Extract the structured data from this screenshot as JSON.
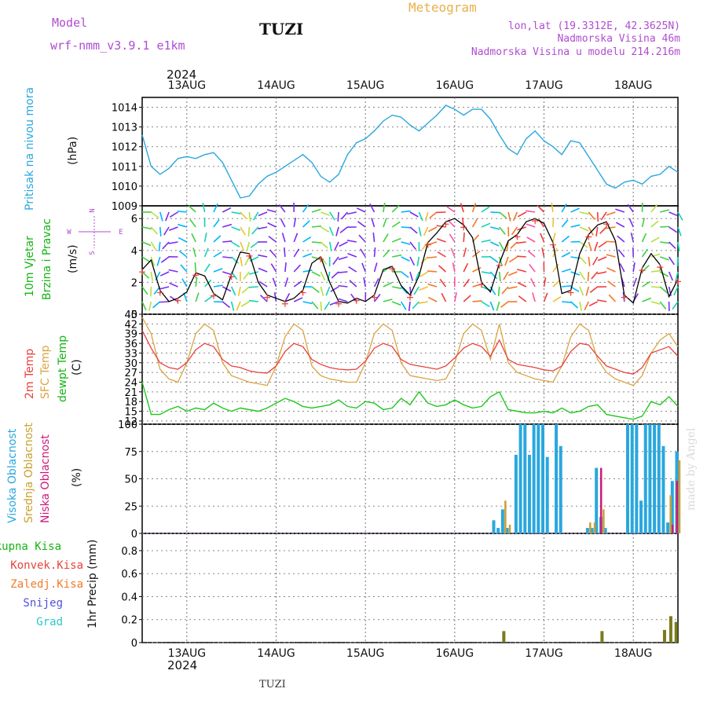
{
  "header": {
    "model_label": "Model",
    "model_name": "wrf-nmm_v3.9.1  e1km",
    "station": "TUZI",
    "title": "Meteogram",
    "coords": "lon,lat (19.3312E, 42.3625N)",
    "elevation": "Nadmorska Visina 46m",
    "model_elevation": "Nadmorska Visina u modelu 214.216m",
    "year": "2024",
    "footer_station": "TUZI",
    "credit": "made by Angel"
  },
  "colors": {
    "pressure": "#2aa7de",
    "wind_label": "#14b414",
    "temp2m": "#e8423c",
    "sfc_temp": "#d9a441",
    "dewpoint": "#1ec81e",
    "high_cloud": "#2aa7de",
    "mid_cloud": "#c9a030",
    "low_cloud": "#d0187c",
    "precip_bar": "#7a7a1e",
    "axis_label_purple": "#b04cd0"
  },
  "days": [
    "13AUG",
    "14AUG",
    "15AUG",
    "16AUG",
    "17AUG",
    "18AUG"
  ],
  "panels": {
    "pressure": {
      "ylabel": "Pritisak na nivou mora",
      "unit": "(hPa)",
      "ticks": [
        "1009",
        "1010",
        "1011",
        "1012",
        "1013",
        "1014"
      ]
    },
    "wind": {
      "ylabel1": "10m Vjetar",
      "ylabel2": "Brzina i Pravac",
      "unit": "(m/s)",
      "ticks": [
        "0",
        "2",
        "4",
        "6"
      ],
      "compass_n": "N",
      "compass_w": "W",
      "compass_e": "E",
      "compass_s": "S"
    },
    "temperature": {
      "label_2m": "2m Temp",
      "label_sfc": "SFC Temp",
      "label_dew": "dewpt Temp",
      "unit": "(C)",
      "ticks": [
        "12",
        "15",
        "18",
        "21",
        "24",
        "27",
        "30",
        "33",
        "36",
        "39",
        "42",
        "45"
      ]
    },
    "cloud": {
      "label_high": "Visoka Oblacnost",
      "label_mid": "Srednja Oblacnost",
      "label_low": "Niska Oblacnost",
      "unit": "(%)",
      "ticks": [
        "0",
        "25",
        "50",
        "75",
        "100"
      ]
    },
    "precip": {
      "legend": [
        "Ukupna Kisa",
        "Konvek.Kisa",
        "Zaledj.Kisa",
        "Snijeg",
        "Grad"
      ],
      "legend_colors": [
        "#14b414",
        "#e8423c",
        "#f07a28",
        "#5050e0",
        "#2cc8c8"
      ],
      "ylabel": "1hr Precip (mm)",
      "ticks": [
        "0",
        "0.2",
        "0.4",
        "0.6",
        "0.8"
      ]
    }
  },
  "chart_data": [
    {
      "type": "line",
      "title": "",
      "ylabel": "Pritisak na nivou mora (hPa)",
      "ylim": [
        1009,
        1014.5
      ],
      "x": [
        12.5,
        12.6,
        12.7,
        12.8,
        12.9,
        13.0,
        13.1,
        13.2,
        13.3,
        13.4,
        13.5,
        13.6,
        13.7,
        13.8,
        13.9,
        14.0,
        14.1,
        14.2,
        14.3,
        14.4,
        14.5,
        14.6,
        14.7,
        14.8,
        14.9,
        15.0,
        15.1,
        15.2,
        15.3,
        15.4,
        15.5,
        15.6,
        15.7,
        15.8,
        15.9,
        16.0,
        16.1,
        16.2,
        16.3,
        16.4,
        16.5,
        16.6,
        16.7,
        16.8,
        16.9,
        17.0,
        17.1,
        17.2,
        17.3,
        17.4,
        17.5,
        17.6,
        17.7,
        17.8,
        17.9,
        18.0,
        18.1,
        18.2,
        18.3,
        18.4,
        18.5
      ],
      "series": [
        {
          "values": [
            1012.6,
            1011.0,
            1010.6,
            1010.9,
            1011.4,
            1011.5,
            1011.4,
            1011.6,
            1011.7,
            1011.2,
            1010.3,
            1009.4,
            1009.5,
            1010.1,
            1010.5,
            1010.7,
            1011.0,
            1011.3,
            1011.6,
            1011.2,
            1010.5,
            1010.2,
            1010.6,
            1011.6,
            1012.2,
            1012.4,
            1012.8,
            1013.3,
            1013.6,
            1013.5,
            1013.1,
            1012.8,
            1013.2,
            1013.6,
            1014.1,
            1013.9,
            1013.6,
            1013.9,
            1013.9,
            1013.4,
            1012.6,
            1011.9,
            1011.6,
            1012.4,
            1012.8,
            1012.3,
            1012.0,
            1011.6,
            1012.3,
            1012.2,
            1011.5,
            1010.8,
            1010.1,
            1009.9,
            1010.2,
            1010.3,
            1010.1,
            1010.5,
            1010.6,
            1011.0,
            1010.7
          ]
        }
      ]
    },
    {
      "type": "line",
      "title": "",
      "ylabel": "10m Vjetar Brzina i Pravac (m/s)",
      "ylim": [
        0,
        6.8
      ],
      "x": [
        12.5,
        12.6,
        12.7,
        12.8,
        12.9,
        13.0,
        13.1,
        13.2,
        13.3,
        13.4,
        13.5,
        13.6,
        13.7,
        13.8,
        13.9,
        14.0,
        14.1,
        14.2,
        14.3,
        14.4,
        14.5,
        14.6,
        14.7,
        14.8,
        14.9,
        15.0,
        15.1,
        15.2,
        15.3,
        15.4,
        15.5,
        15.6,
        15.7,
        15.8,
        15.9,
        16.0,
        16.1,
        16.2,
        16.3,
        16.4,
        16.5,
        16.6,
        16.7,
        16.8,
        16.9,
        17.0,
        17.1,
        17.2,
        17.3,
        17.4,
        17.5,
        17.6,
        17.7,
        17.8,
        17.9,
        18.0,
        18.1,
        18.2,
        18.3,
        18.4,
        18.5
      ],
      "series": [
        {
          "values": [
            2.8,
            3.4,
            1.5,
            0.8,
            1.0,
            1.4,
            2.6,
            2.4,
            1.3,
            0.9,
            2.5,
            3.9,
            3.8,
            2.0,
            1.2,
            1.0,
            0.8,
            1.0,
            1.5,
            3.2,
            3.6,
            2.0,
            0.8,
            0.7,
            1.0,
            0.8,
            1.2,
            2.8,
            3.0,
            1.8,
            1.2,
            2.4,
            4.5,
            5.1,
            5.8,
            6.0,
            5.6,
            4.8,
            2.0,
            1.4,
            3.2,
            4.6,
            5.0,
            5.8,
            6.0,
            5.7,
            4.5,
            1.3,
            1.5,
            3.8,
            5.0,
            5.6,
            5.8,
            4.6,
            1.2,
            0.7,
            2.9,
            3.8,
            3.1,
            1.1,
            2.2
          ]
        }
      ]
    },
    {
      "type": "line",
      "title": "",
      "ylabel": "(C)",
      "ylim": [
        11,
        45
      ],
      "x": [
        12.5,
        12.6,
        12.7,
        12.8,
        12.9,
        13.0,
        13.1,
        13.2,
        13.3,
        13.4,
        13.5,
        13.6,
        13.7,
        13.8,
        13.9,
        14.0,
        14.1,
        14.2,
        14.3,
        14.4,
        14.5,
        14.6,
        14.7,
        14.8,
        14.9,
        15.0,
        15.1,
        15.2,
        15.3,
        15.4,
        15.5,
        15.6,
        15.7,
        15.8,
        15.9,
        16.0,
        16.1,
        16.2,
        16.3,
        16.4,
        16.5,
        16.6,
        16.7,
        16.8,
        16.9,
        17.0,
        17.1,
        17.2,
        17.3,
        17.4,
        17.5,
        17.6,
        17.7,
        17.8,
        17.9,
        18.0,
        18.1,
        18.2,
        18.3,
        18.4,
        18.5
      ],
      "series": [
        {
          "name": "2m Temp",
          "values": [
            40.0,
            34.5,
            30.0,
            28.5,
            28.0,
            30.0,
            34.0,
            36.0,
            35.0,
            31.0,
            29.0,
            28.5,
            27.5,
            27.0,
            26.8,
            29.0,
            33.5,
            36.0,
            35.0,
            31.0,
            29.5,
            28.5,
            28.0,
            27.8,
            28.0,
            30.5,
            34.5,
            36.0,
            35.0,
            31.0,
            29.5,
            29.0,
            28.5,
            28.0,
            29.0,
            31.5,
            34.5,
            36.0,
            35.0,
            32.0,
            37.0,
            31.0,
            29.5,
            29.0,
            28.5,
            27.8,
            27.5,
            29.0,
            33.5,
            36.0,
            35.5,
            32.0,
            29.0,
            28.0,
            27.0,
            26.5,
            28.5,
            33.0,
            34.0,
            35.0,
            32.0
          ]
        },
        {
          "name": "SFC Temp",
          "values": [
            44.0,
            39.0,
            28.0,
            25.0,
            24.0,
            30.0,
            39.0,
            42.0,
            40.0,
            30.0,
            26.0,
            25.0,
            24.0,
            23.5,
            23.0,
            29.0,
            38.0,
            42.0,
            40.0,
            29.0,
            26.0,
            25.0,
            24.5,
            24.0,
            24.0,
            30.0,
            39.0,
            42.0,
            40.0,
            30.0,
            26.0,
            25.5,
            25.0,
            24.5,
            25.0,
            30.0,
            39.0,
            42.0,
            40.0,
            31.0,
            42.0,
            30.0,
            27.0,
            26.0,
            25.0,
            24.5,
            24.0,
            29.0,
            38.0,
            42.0,
            40.0,
            31.0,
            27.0,
            25.0,
            24.0,
            23.0,
            26.0,
            33.0,
            37.0,
            39.0,
            35.0
          ]
        },
        {
          "name": "dewpt Temp",
          "values": [
            24.0,
            14.0,
            14.0,
            15.5,
            16.5,
            15.0,
            16.0,
            15.5,
            17.5,
            16.0,
            15.0,
            16.0,
            15.5,
            15.0,
            16.0,
            17.5,
            19.0,
            18.0,
            16.5,
            16.0,
            16.5,
            17.0,
            18.5,
            16.5,
            16.0,
            18.0,
            17.5,
            15.5,
            16.0,
            19.0,
            17.0,
            21.0,
            17.5,
            16.5,
            17.0,
            18.5,
            17.0,
            16.0,
            16.5,
            19.5,
            21.0,
            15.5,
            15.0,
            14.5,
            14.5,
            15.0,
            14.5,
            16.0,
            14.5,
            15.0,
            16.5,
            17.0,
            14.0,
            13.5,
            13.0,
            12.5,
            13.5,
            18.0,
            17.0,
            19.5,
            16.5
          ]
        }
      ]
    },
    {
      "type": "bar",
      "title": "",
      "ylabel": "(%)",
      "ylim": [
        0,
        100
      ],
      "x": [
        16.45,
        16.5,
        16.55,
        16.6,
        16.7,
        16.75,
        16.8,
        16.85,
        16.9,
        16.95,
        17.0,
        17.05,
        17.15,
        17.2,
        17.5,
        17.55,
        17.6,
        17.65,
        17.7,
        17.95,
        18.0,
        18.05,
        18.1,
        18.15,
        18.2,
        18.25,
        18.3,
        18.35,
        18.4,
        18.45,
        18.5
      ],
      "series": [
        {
          "name": "Visoka Oblacnost",
          "values": [
            12,
            5,
            22,
            5,
            72,
            100,
            100,
            72,
            100,
            100,
            100,
            70,
            100,
            80,
            5,
            5,
            60,
            15,
            5,
            100,
            100,
            100,
            30,
            100,
            100,
            100,
            100,
            80,
            10,
            48,
            75
          ]
        },
        {
          "name": "Srednja Oblacnost",
          "values": [
            0,
            0,
            30,
            8,
            0,
            0,
            0,
            0,
            0,
            0,
            0,
            0,
            0,
            0,
            10,
            10,
            0,
            22,
            0,
            0,
            0,
            0,
            0,
            0,
            0,
            0,
            0,
            0,
            35,
            0,
            67
          ]
        },
        {
          "name": "Niska Oblacnost",
          "values": [
            0,
            0,
            0,
            0,
            0,
            0,
            0,
            0,
            0,
            0,
            0,
            0,
            0,
            0,
            0,
            0,
            60,
            0,
            0,
            0,
            0,
            0,
            0,
            0,
            0,
            0,
            0,
            0,
            8,
            48,
            0
          ]
        }
      ]
    },
    {
      "type": "bar",
      "title": "",
      "ylabel": "1hr Precip (mm)",
      "ylim": [
        0,
        0.95
      ],
      "x": [
        16.55,
        17.65,
        18.35,
        18.42,
        18.48
      ],
      "series": [
        {
          "name": "Ukupna Kisa",
          "values": [
            0.1,
            0.1,
            0.11,
            0.23,
            0.18
          ]
        }
      ]
    }
  ]
}
